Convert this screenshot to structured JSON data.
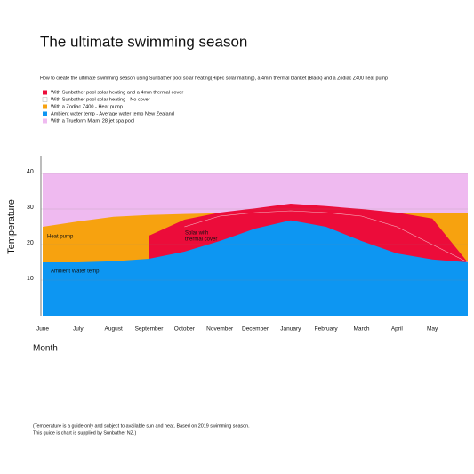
{
  "chart_data": {
    "type": "area",
    "title": "The ultimate swimming season",
    "subtitle": "How to create the ultimate swimming season using Sunbather pool solar heating(Hipec solar matting), a 4mm thermal blanket (Black) and a Zodiac Z400 heat pump",
    "y_label": "Temperature",
    "x_label": "Month",
    "footnote": [
      "(Temperature is a guide only and subject to available sun and heat. Based on 2019 swimming season.",
      "This guide is chart is supplied by Sunbather NZ.)"
    ],
    "annotations": [
      {
        "text": [
          "Heat pump"
        ],
        "series": 1
      },
      {
        "text": [
          "Solar with",
          "thermal cover"
        ],
        "series": 2
      },
      {
        "text": [
          "Ambient Water temp"
        ],
        "series": 4
      }
    ],
    "categories": [
      "June",
      "July",
      "August",
      "September",
      "October",
      "November",
      "December",
      "January",
      "February",
      "March",
      "April",
      "May",
      null
    ],
    "ylim": [
      0,
      45
    ],
    "yticks": [
      10,
      20,
      30,
      40
    ],
    "grid": true,
    "series": [
      {
        "name": "With a Trueform  Miami 28 jet spa pool",
        "color": "#efbaf0",
        "values": [
          40,
          40,
          40,
          40,
          40,
          40,
          40,
          40,
          40,
          40,
          40,
          40,
          40
        ]
      },
      {
        "name": "With a Zodiac Z400 - Heat pump",
        "color": "#f7a20f",
        "values": [
          25,
          26.5,
          27.8,
          28.3,
          28.6,
          28.8,
          29,
          29,
          29,
          29,
          29,
          29,
          29
        ]
      },
      {
        "name": "With Sunbather pool solar heating and a 4mm thermal cover",
        "color": "#ec0c3a",
        "values": [
          null,
          null,
          null,
          22.5,
          27,
          29,
          30.2,
          31.5,
          30.8,
          30,
          29,
          27.3,
          15
        ]
      },
      {
        "name": "With Sunbather pool solar heating - No cover",
        "color": "#ffffff",
        "values": [
          null,
          null,
          null,
          null,
          25,
          28,
          29,
          29.5,
          29,
          28,
          25,
          20,
          15
        ]
      },
      {
        "name": "Ambient water temp - Average water temp New Zealand",
        "color": "#0d96f2",
        "values": [
          15,
          15,
          15.3,
          16,
          18,
          21,
          24.5,
          26.8,
          25,
          21,
          17.5,
          15.8,
          15
        ]
      }
    ],
    "legend_order": [
      2,
      3,
      1,
      4,
      0
    ]
  }
}
